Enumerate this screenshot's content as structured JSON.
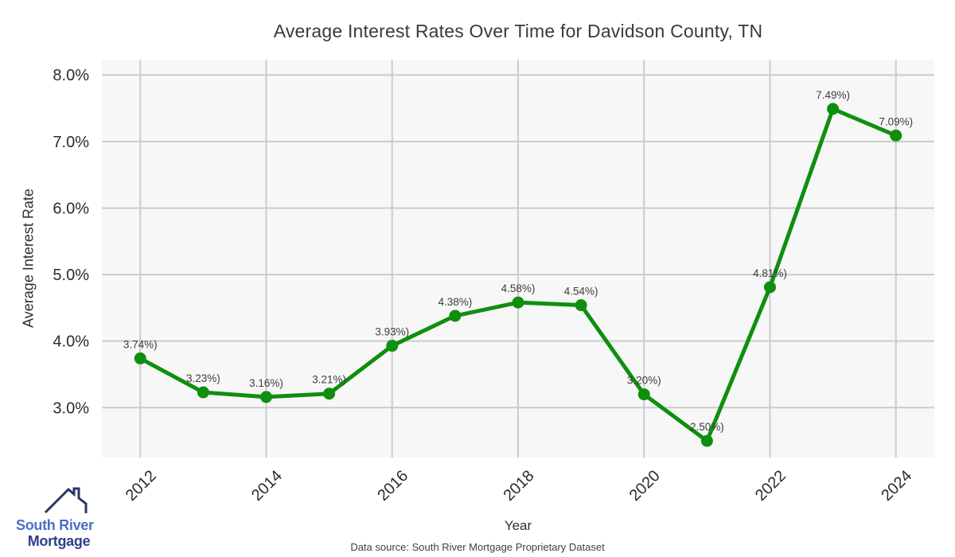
{
  "footer": {
    "caption": "Data source: South River Mortgage Proprietary Dataset"
  },
  "logo": {
    "line1": "South River",
    "line2": "Mortgage"
  },
  "chart_data": {
    "type": "line",
    "title": "Average Interest Rates Over Time for Davidson County, TN",
    "xlabel": "Year",
    "ylabel": "Average Interest Rate",
    "x": [
      2012,
      2013,
      2014,
      2015,
      2016,
      2017,
      2018,
      2019,
      2020,
      2021,
      2022,
      2023,
      2024
    ],
    "values": [
      3.74,
      3.23,
      3.16,
      3.21,
      3.93,
      4.38,
      4.58,
      4.54,
      3.2,
      2.5,
      4.81,
      7.49,
      7.09
    ],
    "point_labels": [
      "3.74%)",
      "3.23%)",
      "3.16%)",
      "3.21%)",
      "3.93%)",
      "4.38%)",
      "4.58%)",
      "4.54%)",
      "3.20%)",
      "2.50%)",
      "4.81%)",
      "7.49%)",
      "7.09%)"
    ],
    "x_ticks": [
      2012,
      2014,
      2016,
      2018,
      2020,
      2022,
      2024
    ],
    "y_ticks": [
      "3.0%",
      "4.0%",
      "5.0%",
      "6.0%",
      "7.0%",
      "8.0%"
    ],
    "y_tick_values": [
      3.0,
      4.0,
      5.0,
      6.0,
      7.0,
      8.0
    ],
    "xlim": [
      2011.39,
      2024.61
    ],
    "ylim": [
      2.25,
      8.23
    ],
    "grid": true,
    "legend": "none",
    "line_color": "#0f8f0f",
    "marker_radius": 7.5,
    "line_width": 5,
    "plot_bg": "#f7f7f7",
    "grid_color": "#cbcbcb"
  }
}
